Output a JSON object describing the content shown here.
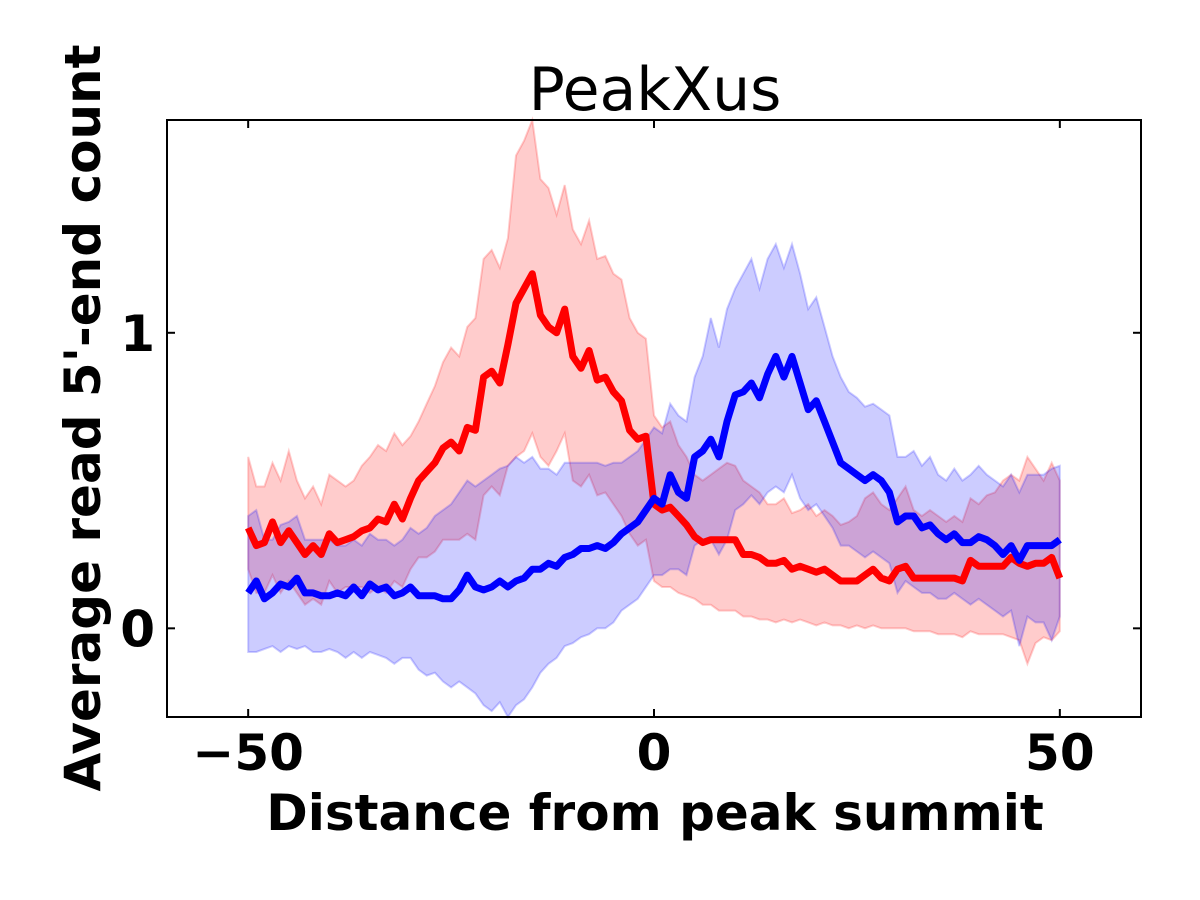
{
  "chart_data": {
    "type": "line",
    "title": "PeakXus",
    "xlabel": "Distance from peak summit",
    "ylabel": "Average read 5'-end count",
    "xlim": [
      -60,
      60
    ],
    "ylim": [
      -0.3,
      1.72
    ],
    "xticks": [
      -50,
      0,
      50
    ],
    "xtick_labels": [
      "−50",
      "0",
      "50"
    ],
    "yticks": [
      0,
      1
    ],
    "ytick_labels": [
      "0",
      "1"
    ],
    "grid": false,
    "legend": "none",
    "series": [
      {
        "color": "#ff0000",
        "band_color": "#ff0000",
        "x": [
          -50,
          -49,
          -48,
          -47,
          -46,
          -45,
          -44,
          -43,
          -42,
          -41,
          -40,
          -39,
          -38,
          -37,
          -36,
          -35,
          -34,
          -33,
          -32,
          -31,
          -30,
          -29,
          -28,
          -27,
          -26,
          -25,
          -24,
          -23,
          -22,
          -21,
          -20,
          -19,
          -18,
          -17,
          -16,
          -15,
          -14,
          -13,
          -12,
          -11,
          -10,
          -9,
          -8,
          -7,
          -6,
          -5,
          -4,
          -3,
          -2,
          -1,
          0,
          1,
          2,
          3,
          4,
          5,
          6,
          7,
          8,
          9,
          10,
          11,
          12,
          13,
          14,
          15,
          16,
          17,
          18,
          19,
          20,
          21,
          22,
          23,
          24,
          25,
          26,
          27,
          28,
          29,
          30,
          31,
          32,
          33,
          34,
          35,
          36,
          37,
          38,
          39,
          40,
          41,
          42,
          43,
          44,
          45,
          46,
          47,
          48,
          49,
          50
        ],
        "values": [
          0.34,
          0.28,
          0.29,
          0.36,
          0.29,
          0.33,
          0.29,
          0.25,
          0.28,
          0.25,
          0.32,
          0.29,
          0.3,
          0.31,
          0.33,
          0.34,
          0.37,
          0.36,
          0.42,
          0.37,
          0.44,
          0.5,
          0.53,
          0.56,
          0.61,
          0.63,
          0.6,
          0.68,
          0.67,
          0.85,
          0.87,
          0.83,
          0.96,
          1.1,
          1.15,
          1.2,
          1.06,
          1.02,
          1.0,
          1.08,
          0.92,
          0.88,
          0.94,
          0.84,
          0.85,
          0.8,
          0.77,
          0.67,
          0.64,
          0.65,
          0.42,
          0.4,
          0.41,
          0.38,
          0.35,
          0.31,
          0.29,
          0.3,
          0.3,
          0.3,
          0.3,
          0.25,
          0.25,
          0.24,
          0.22,
          0.22,
          0.23,
          0.2,
          0.21,
          0.2,
          0.19,
          0.2,
          0.18,
          0.16,
          0.16,
          0.16,
          0.18,
          0.2,
          0.17,
          0.16,
          0.2,
          0.21,
          0.17,
          0.17,
          0.17,
          0.17,
          0.17,
          0.17,
          0.16,
          0.23,
          0.21,
          0.21,
          0.21,
          0.21,
          0.24,
          0.22,
          0.21,
          0.22,
          0.22,
          0.24,
          0.17
        ],
        "upper": [
          0.58,
          0.48,
          0.48,
          0.56,
          0.5,
          0.6,
          0.5,
          0.44,
          0.48,
          0.42,
          0.52,
          0.5,
          0.48,
          0.5,
          0.55,
          0.58,
          0.62,
          0.6,
          0.66,
          0.62,
          0.65,
          0.7,
          0.76,
          0.82,
          0.9,
          0.95,
          0.92,
          1.02,
          1.05,
          1.25,
          1.28,
          1.22,
          1.32,
          1.6,
          1.65,
          1.72,
          1.52,
          1.49,
          1.4,
          1.5,
          1.35,
          1.3,
          1.38,
          1.25,
          1.26,
          1.2,
          1.18,
          1.05,
          1.0,
          0.98,
          0.72,
          0.68,
          0.7,
          0.62,
          0.58,
          0.52,
          0.5,
          0.52,
          0.54,
          0.56,
          0.55,
          0.5,
          0.48,
          0.46,
          0.42,
          0.42,
          0.44,
          0.39,
          0.4,
          0.42,
          0.38,
          0.4,
          0.38,
          0.35,
          0.36,
          0.38,
          0.44,
          0.46,
          0.42,
          0.4,
          0.44,
          0.48,
          0.4,
          0.38,
          0.4,
          0.38,
          0.36,
          0.38,
          0.36,
          0.44,
          0.42,
          0.45,
          0.46,
          0.5,
          0.52,
          0.5,
          0.58,
          0.54,
          0.5,
          0.56,
          0.5
        ],
        "lower": [
          0.2,
          0.12,
          0.12,
          0.18,
          0.12,
          0.16,
          0.12,
          0.08,
          0.1,
          0.08,
          0.16,
          0.12,
          0.14,
          0.14,
          0.14,
          0.12,
          0.14,
          0.12,
          0.16,
          0.14,
          0.2,
          0.24,
          0.24,
          0.26,
          0.3,
          0.3,
          0.3,
          0.32,
          0.3,
          0.45,
          0.48,
          0.45,
          0.55,
          0.58,
          0.6,
          0.66,
          0.58,
          0.55,
          0.6,
          0.66,
          0.5,
          0.48,
          0.52,
          0.45,
          0.46,
          0.42,
          0.38,
          0.32,
          0.28,
          0.3,
          0.16,
          0.14,
          0.14,
          0.12,
          0.11,
          0.1,
          0.08,
          0.08,
          0.06,
          0.06,
          0.06,
          0.04,
          0.04,
          0.03,
          0.03,
          0.02,
          0.03,
          0.02,
          0.03,
          0.02,
          0.01,
          0.02,
          0.01,
          0.01,
          0.0,
          0.01,
          0.0,
          0.01,
          0.0,
          0.0,
          0.0,
          0.0,
          -0.01,
          -0.01,
          -0.01,
          -0.02,
          -0.02,
          -0.02,
          -0.03,
          -0.01,
          -0.02,
          -0.02,
          -0.02,
          -0.02,
          -0.03,
          -0.04,
          -0.12,
          -0.05,
          -0.03,
          -0.04,
          -0.01
        ]
      },
      {
        "color": "#0000ff",
        "band_color": "#0000ff",
        "x": [
          -50,
          -49,
          -48,
          -47,
          -46,
          -45,
          -44,
          -43,
          -42,
          -41,
          -40,
          -39,
          -38,
          -37,
          -36,
          -35,
          -34,
          -33,
          -32,
          -31,
          -30,
          -29,
          -28,
          -27,
          -26,
          -25,
          -24,
          -23,
          -22,
          -21,
          -20,
          -19,
          -18,
          -17,
          -16,
          -15,
          -14,
          -13,
          -12,
          -11,
          -10,
          -9,
          -8,
          -7,
          -6,
          -5,
          -4,
          -3,
          -2,
          -1,
          0,
          1,
          2,
          3,
          4,
          5,
          6,
          7,
          8,
          9,
          10,
          11,
          12,
          13,
          14,
          15,
          16,
          17,
          18,
          19,
          20,
          21,
          22,
          23,
          24,
          25,
          26,
          27,
          28,
          29,
          30,
          31,
          32,
          33,
          34,
          35,
          36,
          37,
          38,
          39,
          40,
          41,
          42,
          43,
          44,
          45,
          46,
          47,
          48,
          49,
          50
        ],
        "values": [
          0.12,
          0.16,
          0.1,
          0.12,
          0.15,
          0.14,
          0.17,
          0.12,
          0.12,
          0.11,
          0.11,
          0.12,
          0.11,
          0.14,
          0.11,
          0.15,
          0.13,
          0.14,
          0.11,
          0.12,
          0.14,
          0.11,
          0.11,
          0.11,
          0.1,
          0.1,
          0.13,
          0.18,
          0.14,
          0.13,
          0.14,
          0.16,
          0.14,
          0.16,
          0.17,
          0.2,
          0.2,
          0.22,
          0.21,
          0.24,
          0.25,
          0.27,
          0.27,
          0.28,
          0.27,
          0.29,
          0.32,
          0.34,
          0.36,
          0.4,
          0.44,
          0.42,
          0.52,
          0.46,
          0.44,
          0.58,
          0.6,
          0.64,
          0.58,
          0.7,
          0.79,
          0.8,
          0.83,
          0.78,
          0.86,
          0.92,
          0.85,
          0.92,
          0.83,
          0.74,
          0.77,
          0.7,
          0.63,
          0.56,
          0.54,
          0.52,
          0.5,
          0.52,
          0.5,
          0.46,
          0.36,
          0.38,
          0.38,
          0.34,
          0.35,
          0.32,
          0.3,
          0.32,
          0.29,
          0.29,
          0.31,
          0.3,
          0.28,
          0.25,
          0.28,
          0.23,
          0.28,
          0.28,
          0.28,
          0.28,
          0.3
        ],
        "upper": [
          0.38,
          0.4,
          0.3,
          0.3,
          0.35,
          0.36,
          0.38,
          0.3,
          0.3,
          0.3,
          0.3,
          0.28,
          0.28,
          0.3,
          0.28,
          0.32,
          0.3,
          0.3,
          0.28,
          0.3,
          0.34,
          0.32,
          0.34,
          0.38,
          0.4,
          0.42,
          0.46,
          0.5,
          0.48,
          0.5,
          0.52,
          0.54,
          0.55,
          0.58,
          0.56,
          0.58,
          0.54,
          0.54,
          0.52,
          0.56,
          0.56,
          0.56,
          0.56,
          0.56,
          0.55,
          0.56,
          0.56,
          0.58,
          0.6,
          0.64,
          0.68,
          0.66,
          0.76,
          0.72,
          0.7,
          0.85,
          0.92,
          1.05,
          0.95,
          1.08,
          1.15,
          1.2,
          1.25,
          1.15,
          1.25,
          1.3,
          1.22,
          1.3,
          1.2,
          1.08,
          1.12,
          1.02,
          0.92,
          0.85,
          0.8,
          0.78,
          0.75,
          0.76,
          0.74,
          0.72,
          0.58,
          0.58,
          0.6,
          0.55,
          0.58,
          0.52,
          0.5,
          0.54,
          0.5,
          0.52,
          0.55,
          0.52,
          0.5,
          0.48,
          0.52,
          0.46,
          0.52,
          0.52,
          0.52,
          0.54,
          0.55
        ],
        "lower": [
          -0.08,
          -0.08,
          -0.07,
          -0.06,
          -0.08,
          -0.06,
          -0.07,
          -0.06,
          -0.08,
          -0.08,
          -0.07,
          -0.08,
          -0.1,
          -0.08,
          -0.1,
          -0.08,
          -0.09,
          -0.1,
          -0.12,
          -0.1,
          -0.1,
          -0.14,
          -0.16,
          -0.15,
          -0.18,
          -0.2,
          -0.18,
          -0.2,
          -0.22,
          -0.26,
          -0.28,
          -0.25,
          -0.3,
          -0.26,
          -0.24,
          -0.2,
          -0.15,
          -0.12,
          -0.1,
          -0.06,
          -0.05,
          -0.03,
          -0.02,
          0.0,
          0.0,
          0.02,
          0.06,
          0.08,
          0.1,
          0.14,
          0.18,
          0.18,
          0.2,
          0.2,
          0.18,
          0.28,
          0.3,
          0.3,
          0.25,
          0.3,
          0.4,
          0.42,
          0.45,
          0.42,
          0.46,
          0.48,
          0.46,
          0.52,
          0.44,
          0.4,
          0.42,
          0.38,
          0.34,
          0.28,
          0.28,
          0.26,
          0.24,
          0.26,
          0.24,
          0.22,
          0.12,
          0.16,
          0.14,
          0.12,
          0.12,
          0.1,
          0.1,
          0.12,
          0.1,
          0.08,
          0.1,
          0.08,
          0.06,
          0.04,
          0.06,
          -0.06,
          0.04,
          0.02,
          0.02,
          -0.04,
          0.04
        ]
      }
    ]
  }
}
